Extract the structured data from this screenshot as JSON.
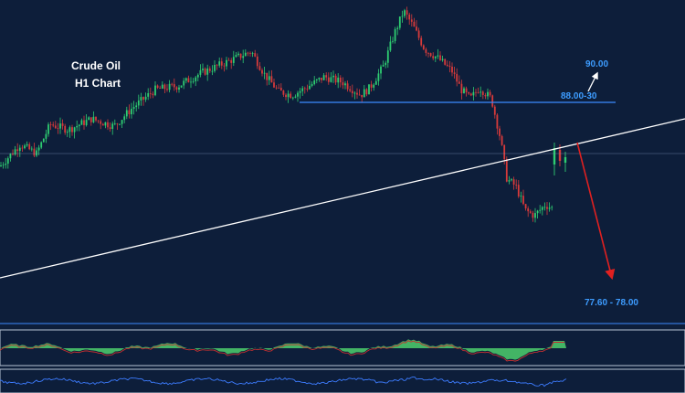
{
  "chart_data": {
    "type": "candlestick",
    "title_lines": [
      "Crude Oil",
      "H1 Chart"
    ],
    "price_range": [
      76.2,
      93.4
    ],
    "grid": false,
    "colors": {
      "background": "#0d1e3a",
      "bull": "#2ecc71",
      "bear": "#d63a3a",
      "support_line": "#3d8bff",
      "trendline": "#ffffff",
      "target_arrow": "#e02020",
      "up_arrow": "#ffffff",
      "label": "#3d9cff",
      "osc_fill": "#49c46a",
      "osc_line": "#c43030",
      "rsi_line": "#3d7cff"
    },
    "key_path": [
      [
        0,
        84.7
      ],
      [
        22,
        85.9
      ],
      [
        40,
        85.4
      ],
      [
        55,
        87.0
      ],
      [
        75,
        86.7
      ],
      [
        100,
        87.3
      ],
      [
        125,
        86.9
      ],
      [
        145,
        87.9
      ],
      [
        170,
        88.9
      ],
      [
        195,
        89.1
      ],
      [
        220,
        89.8
      ],
      [
        248,
        90.4
      ],
      [
        275,
        91.0
      ],
      [
        290,
        89.7
      ],
      [
        305,
        88.8
      ],
      [
        320,
        88.6
      ],
      [
        335,
        89.0
      ],
      [
        355,
        89.6
      ],
      [
        375,
        89.3
      ],
      [
        395,
        88.6
      ],
      [
        405,
        89.0
      ],
      [
        420,
        90.2
      ],
      [
        432,
        92.0
      ],
      [
        442,
        93.2
      ],
      [
        452,
        92.4
      ],
      [
        465,
        91.1
      ],
      [
        480,
        90.6
      ],
      [
        495,
        89.9
      ],
      [
        505,
        88.9
      ],
      [
        515,
        88.4
      ],
      [
        525,
        89.0
      ],
      [
        538,
        88.4
      ],
      [
        548,
        86.2
      ],
      [
        555,
        84.0
      ],
      [
        565,
        83.6
      ],
      [
        575,
        82.3
      ],
      [
        585,
        82.0
      ],
      [
        597,
        82.6
      ],
      [
        605,
        82.4
      ]
    ],
    "late_candles": [
      {
        "o": 84.8,
        "h": 86.0,
        "l": 84.2,
        "c": 85.7
      },
      {
        "o": 85.6,
        "h": 85.9,
        "l": 84.7,
        "c": 85.0
      },
      {
        "o": 84.9,
        "h": 85.5,
        "l": 84.4,
        "c": 85.2
      }
    ],
    "horizontal_levels": [
      {
        "label": "88.00-30",
        "price": 88.2
      },
      {
        "label": "",
        "price": 85.4
      }
    ],
    "trendline": {
      "from": [
        0,
        78.6
      ],
      "to": [
        750,
        87.3
      ]
    },
    "annotations": [
      {
        "text": "90.00",
        "price": 90.0,
        "direction": "up"
      },
      {
        "text": "88.00-30",
        "price": 88.2
      },
      {
        "text": "77.60 - 78.00",
        "price": 77.8,
        "direction": "down"
      }
    ],
    "indicators": [
      "oscillator",
      "rsi"
    ]
  }
}
